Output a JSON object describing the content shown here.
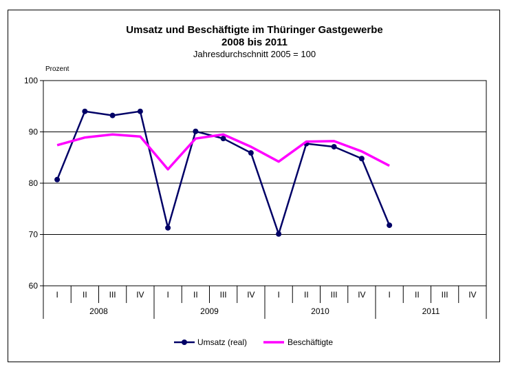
{
  "chart_data": {
    "type": "line",
    "title": "Umsatz und Beschäftigte im Thüringer Gastgewerbe",
    "title_line2": "2008 bis 2011",
    "subtitle": "Jahresdurchschnitt 2005 = 100",
    "ylabel": "Prozent",
    "xlabel": "",
    "ylim": [
      60,
      100
    ],
    "yticks": [
      60,
      70,
      80,
      90,
      100
    ],
    "grid": true,
    "legend_position": "bottom",
    "quarters": [
      "I",
      "II",
      "III",
      "IV",
      "I",
      "II",
      "III",
      "IV",
      "I",
      "II",
      "III",
      "IV",
      "I",
      "II",
      "III",
      "IV"
    ],
    "years": [
      "2008",
      "2009",
      "2010",
      "2011"
    ],
    "series": [
      {
        "name": "Umsatz (real)",
        "color": "#000066",
        "marker": "circle",
        "values": [
          80.7,
          94.0,
          93.2,
          94.0,
          71.3,
          90.1,
          88.7,
          85.9,
          70.1,
          87.7,
          87.1,
          84.8,
          71.8,
          null,
          null,
          null
        ]
      },
      {
        "name": "Beschäftigte",
        "color": "#FF00FF",
        "marker": "none",
        "values": [
          87.4,
          88.9,
          89.5,
          89.1,
          82.7,
          88.7,
          89.5,
          87.1,
          84.2,
          88.1,
          88.2,
          86.2,
          83.4,
          null,
          null,
          null
        ]
      }
    ]
  }
}
